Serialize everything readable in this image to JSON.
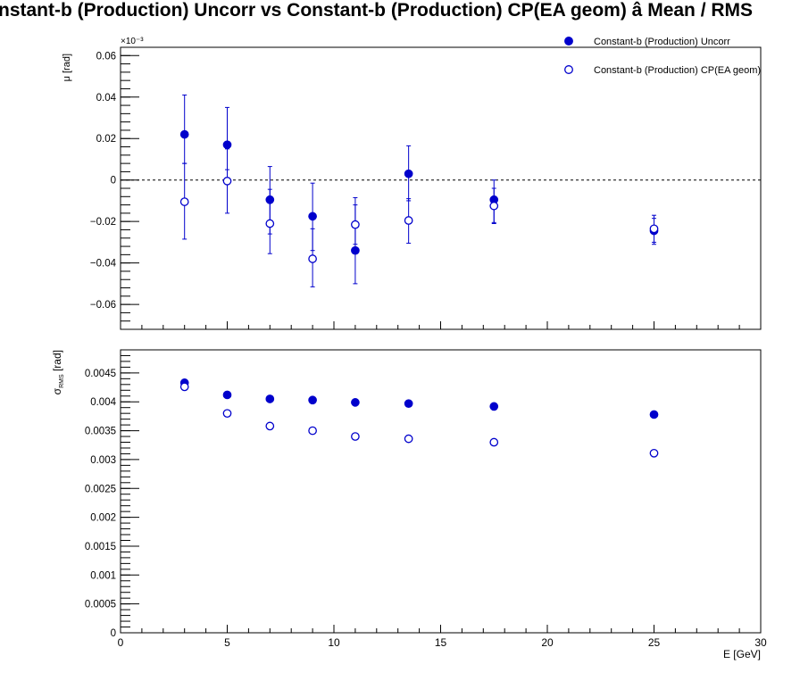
{
  "title": "Constant-b (Production) Uncorr vs Constant-b (Production) CP(EA geom)  â  Mean / RMS",
  "chart_data": [
    {
      "type": "scatter",
      "panel": "top",
      "ylabel": "μ  [rad]",
      "exponent_label": "×10⁻³",
      "ylim": [
        -0.072,
        0.064
      ],
      "y_ticks": [
        "0.06",
        "0.04",
        "0.02",
        "0",
        "−0.02",
        "−0.04",
        "−0.06"
      ],
      "y_tick_values": [
        0.06,
        0.04,
        0.02,
        0,
        -0.02,
        -0.04,
        -0.06
      ],
      "xlim": [
        0,
        30
      ],
      "reference_line": 0,
      "legend_position": "top-right",
      "series": [
        {
          "name": "Constant-b (Production) Uncorr",
          "marker": "filled-circle",
          "x": [
            3,
            5,
            7,
            9,
            11,
            13.5,
            17.5,
            25
          ],
          "y": [
            0.022,
            0.017,
            -0.0095,
            -0.0175,
            -0.034,
            0.003,
            -0.0095,
            -0.0245
          ],
          "err_lo": [
            0.014,
            0.012,
            0.0165,
            0.0165,
            0.016,
            0.013,
            0.0115,
            0.0065
          ],
          "err_hi": [
            0.019,
            0.018,
            0.016,
            0.016,
            0.0255,
            0.0135,
            0.0095,
            0.006
          ]
        },
        {
          "name": "Constant-b (Production) CP(EA geom)",
          "marker": "open-circle",
          "x": [
            3,
            5,
            7,
            9,
            11,
            13.5,
            17.5,
            25
          ],
          "y": [
            -0.0105,
            -0.0005,
            -0.021,
            -0.038,
            -0.0215,
            -0.0195,
            -0.0125,
            -0.0235
          ],
          "err_lo": [
            0.018,
            0.0155,
            0.0145,
            0.0135,
            0.0095,
            0.011,
            0.008,
            0.0065
          ],
          "err_hi": [
            0.0185,
            0.0155,
            0.0165,
            0.0145,
            0.0095,
            0.0105,
            0.0085,
            0.0065
          ]
        }
      ]
    },
    {
      "type": "scatter",
      "panel": "bottom",
      "ylabel": "σ",
      "ylabel_sub": "RMS",
      "ylabel_unit": "[rad]",
      "xlabel": "E  [GeV]",
      "ylim": [
        0,
        0.0049
      ],
      "y_ticks": [
        "0.0045",
        "0.004",
        "0.0035",
        "0.003",
        "0.0025",
        "0.002",
        "0.0015",
        "0.001",
        "0.0005",
        "0"
      ],
      "y_tick_values": [
        0.0045,
        0.004,
        0.0035,
        0.003,
        0.0025,
        0.002,
        0.0015,
        0.001,
        0.0005,
        0
      ],
      "xlim": [
        0,
        30
      ],
      "x_ticks": [
        "0",
        "5",
        "10",
        "15",
        "20",
        "25",
        "30"
      ],
      "x_tick_values": [
        0,
        5,
        10,
        15,
        20,
        25,
        30
      ],
      "series": [
        {
          "name": "Constant-b (Production) Uncorr",
          "marker": "filled-circle",
          "x": [
            3,
            5,
            7,
            9,
            11,
            13.5,
            17.5,
            25
          ],
          "y": [
            0.00433,
            0.00412,
            0.00405,
            0.00403,
            0.00399,
            0.00397,
            0.00392,
            0.00378
          ]
        },
        {
          "name": "Constant-b (Production) CP(EA geom)",
          "marker": "open-circle",
          "x": [
            3,
            5,
            7,
            9,
            11,
            13.5,
            17.5,
            25
          ],
          "y": [
            0.00426,
            0.0038,
            0.00358,
            0.0035,
            0.0034,
            0.00336,
            0.0033,
            0.00311
          ]
        }
      ]
    }
  ],
  "colors": {
    "marker": "#0000cc",
    "axis": "#000000"
  }
}
